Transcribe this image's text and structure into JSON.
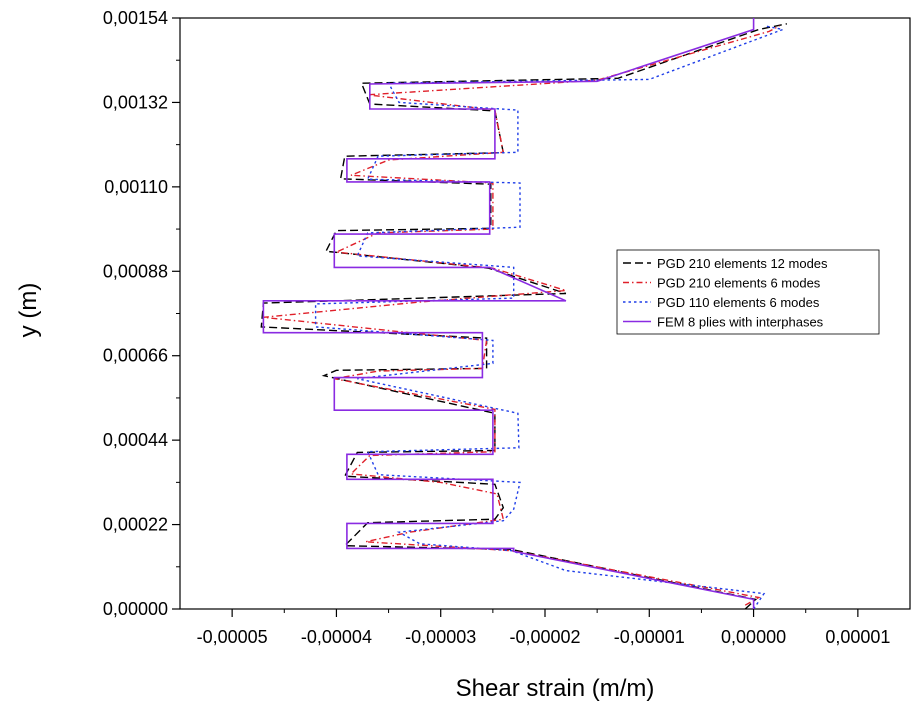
{
  "chart_data": {
    "type": "line",
    "title": "",
    "xlabel": "Shear strain (m/m)",
    "ylabel": "y (m)",
    "xlim": [
      -5.5e-05,
      1.5e-05
    ],
    "ylim": [
      0,
      0.00154
    ],
    "x_ticks": [
      -5e-05,
      -4e-05,
      -3e-05,
      -2e-05,
      -1e-05,
      0.0,
      1e-05
    ],
    "x_tick_labels": [
      "-0,00005",
      "-0,00004",
      "-0,00003",
      "-0,00002",
      "-0,00001",
      "0,00000",
      "0,00001"
    ],
    "y_ticks": [
      0.0,
      0.00022,
      0.00044,
      0.00066,
      0.00088,
      0.0011,
      0.00132,
      0.00154
    ],
    "y_tick_labels": [
      "0,00000",
      "0,00022",
      "0,00044",
      "0,00066",
      "0,00088",
      "0,00110",
      "0,00132",
      "0,00154"
    ],
    "grid": false,
    "legend_position": "right",
    "series": [
      {
        "name": "PGD 210 elements 12 modes",
        "color": "#000000",
        "dash": "dashed",
        "points": [
          [
            -8e-07,
            0.0
          ],
          [
            2e-07,
            2.5e-05
          ],
          [
            -2.32e-05,
            0.000155
          ],
          [
            -3.92e-05,
            0.000165
          ],
          [
            -3.7e-05,
            0.000225
          ],
          [
            -2.48e-05,
            0.000234
          ],
          [
            -2.4e-05,
            0.000264
          ],
          [
            -2.48e-05,
            0.000325
          ],
          [
            -3.92e-05,
            0.000346
          ],
          [
            -3.8e-05,
            0.000408
          ],
          [
            -2.48e-05,
            0.000413
          ],
          [
            -2.48e-05,
            0.00051
          ],
          [
            -4.12e-05,
            0.000608
          ],
          [
            -4e-05,
            0.000622
          ],
          [
            -2.56e-05,
            0.000627
          ],
          [
            -2.56e-05,
            0.000706
          ],
          [
            -4.72e-05,
            0.000735
          ],
          [
            -4.7e-05,
            0.000797
          ],
          [
            -1.8e-05,
            0.000822
          ],
          [
            -2.54e-05,
            0.000888
          ],
          [
            -4.1e-05,
            0.000932
          ],
          [
            -4e-05,
            0.000986
          ],
          [
            -2.52e-05,
            0.000992
          ],
          [
            -2.52e-05,
            0.001107
          ],
          [
            -3.96e-05,
            0.001121
          ],
          [
            -3.92e-05,
            0.00118
          ],
          [
            -2.4e-05,
            0.001189
          ],
          [
            -2.48e-05,
            0.001298
          ],
          [
            -3.68e-05,
            0.001316
          ],
          [
            -3.76e-05,
            0.00137
          ],
          [
            -1.3e-05,
            0.001383
          ],
          [
            5e-07,
            0.00151
          ],
          [
            3.2e-06,
            0.001525
          ]
        ]
      },
      {
        "name": "PGD 210 elements 6 modes",
        "color": "#e0202a",
        "dash": "dashdot",
        "points": [
          [
            -8e-07,
            1e-05
          ],
          [
            5e-07,
            3e-05
          ],
          [
            -2.32e-05,
            0.000152
          ],
          [
            -3.72e-05,
            0.000175
          ],
          [
            -3.3e-05,
            0.0002
          ],
          [
            -2.4e-05,
            0.000234
          ],
          [
            -2.46e-05,
            0.0003
          ],
          [
            -3e-05,
            0.00033
          ],
          [
            -3.86e-05,
            0.000352
          ],
          [
            -3.68e-05,
            0.0004
          ],
          [
            -2.48e-05,
            0.00041
          ],
          [
            -2.48e-05,
            0.00052
          ],
          [
            -4.02e-05,
            0.0006
          ],
          [
            -3.6e-05,
            0.00062
          ],
          [
            -2.6e-05,
            0.000627
          ],
          [
            -2.56e-05,
            0.0007
          ],
          [
            -3.3e-05,
            0.00072
          ],
          [
            -4.7e-05,
            0.00076
          ],
          [
            -3.2e-05,
            0.0008
          ],
          [
            -1.8e-05,
            0.00083
          ],
          [
            -2.5e-05,
            0.000888
          ],
          [
            -4e-05,
            0.00093
          ],
          [
            -3.6e-05,
            0.00098
          ],
          [
            -2.5e-05,
            0.00099
          ],
          [
            -2.5e-05,
            0.00111
          ],
          [
            -3.86e-05,
            0.00113
          ],
          [
            -3.5e-05,
            0.00117
          ],
          [
            -2.4e-05,
            0.00119
          ],
          [
            -2.48e-05,
            0.0013
          ],
          [
            -3.7e-05,
            0.00134
          ],
          [
            -1.5e-05,
            0.001378
          ],
          [
            1.5e-06,
            0.001505
          ],
          [
            2.5e-06,
            0.00152
          ]
        ]
      },
      {
        "name": "PGD 110 elements 6 modes",
        "color": "#1f3ee8",
        "dash": "dotted",
        "points": [
          [
            0.0,
            0.0
          ],
          [
            1e-06,
            4e-05
          ],
          [
            -1.8e-05,
            0.0001
          ],
          [
            -2.32e-05,
            0.000152
          ],
          [
            -3.2e-05,
            0.00017
          ],
          [
            -3.4e-05,
            0.0002
          ],
          [
            -2.4e-05,
            0.00023
          ],
          [
            -2.3e-05,
            0.00026
          ],
          [
            -2.24e-05,
            0.00033
          ],
          [
            -3.6e-05,
            0.00035
          ],
          [
            -3.7e-05,
            0.00041
          ],
          [
            -2.25e-05,
            0.00042
          ],
          [
            -2.26e-05,
            0.00051
          ],
          [
            -3.8e-05,
            0.0006
          ],
          [
            -2.5e-05,
            0.00064
          ],
          [
            -2.5e-05,
            0.0007
          ],
          [
            -4.2e-05,
            0.000735
          ],
          [
            -4.2e-05,
            0.000795
          ],
          [
            -2.3e-05,
            0.00081
          ],
          [
            -2.3e-05,
            0.00089
          ],
          [
            -3.8e-05,
            0.00092
          ],
          [
            -3.7e-05,
            0.00098
          ],
          [
            -2.24e-05,
            0.000995
          ],
          [
            -2.24e-05,
            0.00111
          ],
          [
            -3.7e-05,
            0.00112
          ],
          [
            -3.6e-05,
            0.00118
          ],
          [
            -2.26e-05,
            0.00119
          ],
          [
            -2.26e-05,
            0.0013
          ],
          [
            -3.4e-05,
            0.00132
          ],
          [
            -3.5e-05,
            0.00137
          ],
          [
            -1e-05,
            0.00138
          ],
          [
            2.8e-06,
            0.00151
          ],
          [
            1e-06,
            0.00152
          ]
        ]
      },
      {
        "name": "FEM 8 plies with interphases",
        "color": "#8a2be2",
        "dash": "solid",
        "points": [
          [
            0.0,
            0.0
          ],
          [
            0.0,
            2.5e-05
          ],
          [
            -2.3e-05,
            0.00015
          ],
          [
            -2.3e-05,
            0.000158
          ],
          [
            -3.9e-05,
            0.000158
          ],
          [
            -3.9e-05,
            0.000223
          ],
          [
            -2.5e-05,
            0.000223
          ],
          [
            -2.5e-05,
            0.000338
          ],
          [
            -3.9e-05,
            0.000338
          ],
          [
            -3.9e-05,
            0.000403
          ],
          [
            -2.5e-05,
            0.000403
          ],
          [
            -2.5e-05,
            0.000518
          ],
          [
            -4.02e-05,
            0.000518
          ],
          [
            -4.02e-05,
            0.000603
          ],
          [
            -2.6e-05,
            0.000603
          ],
          [
            -2.6e-05,
            0.00072
          ],
          [
            -4.7e-05,
            0.00072
          ],
          [
            -4.7e-05,
            0.000803
          ],
          [
            -1.8e-05,
            0.000803
          ],
          [
            -2.53e-05,
            0.00089
          ],
          [
            -4.02e-05,
            0.00089
          ],
          [
            -4.02e-05,
            0.000977
          ],
          [
            -2.53e-05,
            0.000977
          ],
          [
            -2.53e-05,
            0.001113
          ],
          [
            -3.9e-05,
            0.001113
          ],
          [
            -3.9e-05,
            0.001173
          ],
          [
            -2.48e-05,
            0.001173
          ],
          [
            -2.48e-05,
            0.001303
          ],
          [
            -3.68e-05,
            0.001303
          ],
          [
            -3.68e-05,
            0.001368
          ],
          [
            -1.5e-05,
            0.001375
          ],
          [
            0.0,
            0.00151
          ],
          [
            0.0,
            0.00154
          ]
        ]
      }
    ]
  }
}
